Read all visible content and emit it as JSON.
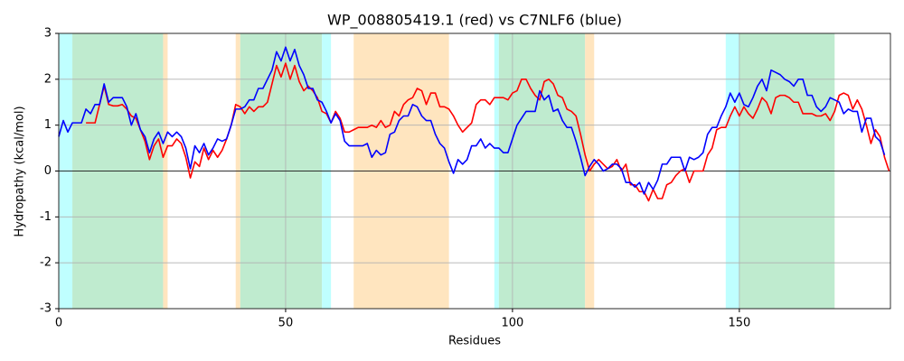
{
  "chart_data": {
    "type": "line",
    "title": "WP_008805419.1 (red) vs C7NLF6 (blue)",
    "x_label": "Residues",
    "y_label": "Hydropathy (kcal/mol)",
    "xlim": [
      0,
      183.3
    ],
    "xticks": [
      0,
      50,
      100,
      150
    ],
    "ylim": [
      -3,
      3
    ],
    "yticks": [
      -3,
      -2,
      -1,
      0,
      1,
      2,
      3
    ],
    "grid": true,
    "hline": 0,
    "regions": [
      {
        "start": 0,
        "end": 3,
        "color": "#bfffff"
      },
      {
        "start": 3,
        "end": 23,
        "color": "#bfebcf"
      },
      {
        "start": 23,
        "end": 24,
        "color": "#ffe5bf"
      },
      {
        "start": 39,
        "end": 40,
        "color": "#ffe5bf"
      },
      {
        "start": 40,
        "end": 58,
        "color": "#bfebcf"
      },
      {
        "start": 58,
        "end": 60,
        "color": "#bfffff"
      },
      {
        "start": 65,
        "end": 86,
        "color": "#ffe5bf"
      },
      {
        "start": 96,
        "end": 97,
        "color": "#bfffff"
      },
      {
        "start": 97,
        "end": 116,
        "color": "#bfebcf"
      },
      {
        "start": 116,
        "end": 118,
        "color": "#ffe5bf"
      },
      {
        "start": 147,
        "end": 150,
        "color": "#bfffff"
      },
      {
        "start": 150,
        "end": 171,
        "color": "#bfebcf"
      }
    ],
    "x": [
      0,
      1,
      2,
      3,
      4,
      5,
      6,
      7,
      8,
      9,
      10,
      11,
      12,
      13,
      14,
      15,
      16,
      17,
      18,
      19,
      20,
      21,
      22,
      23,
      24,
      25,
      26,
      27,
      28,
      29,
      30,
      31,
      32,
      33,
      34,
      35,
      36,
      37,
      38,
      39,
      40,
      41,
      42,
      43,
      44,
      45,
      46,
      47,
      48,
      49,
      50,
      51,
      52,
      53,
      54,
      55,
      56,
      57,
      58,
      59,
      60,
      61,
      62,
      63,
      64,
      65,
      66,
      67,
      68,
      69,
      70,
      71,
      72,
      73,
      74,
      75,
      76,
      77,
      78,
      79,
      80,
      81,
      82,
      83,
      84,
      85,
      86,
      87,
      88,
      89,
      90,
      91,
      92,
      93,
      94,
      95,
      96,
      97,
      98,
      99,
      100,
      101,
      102,
      103,
      104,
      105,
      106,
      107,
      108,
      109,
      110,
      111,
      112,
      113,
      114,
      115,
      116,
      117,
      118,
      119,
      120,
      121,
      122,
      123,
      124,
      125,
      126,
      127,
      128,
      129,
      130,
      131,
      132,
      133,
      134,
      135,
      136,
      137,
      138,
      139,
      140,
      141,
      142,
      143,
      144,
      145,
      146,
      147,
      148,
      149,
      150,
      151,
      152,
      153,
      154,
      155,
      156,
      157,
      158,
      159,
      160,
      161,
      162,
      163,
      164,
      165,
      166,
      167,
      168,
      169,
      170,
      171,
      172,
      173,
      174,
      175,
      176,
      177,
      178,
      179,
      180,
      181,
      182,
      183
    ],
    "series": [
      {
        "color": "red",
        "values": [
          null,
          null,
          null,
          null,
          null,
          null,
          1.05,
          1.05,
          1.05,
          1.45,
          1.85,
          1.45,
          1.42,
          1.42,
          1.45,
          1.35,
          1.2,
          1.15,
          0.9,
          0.65,
          0.25,
          0.55,
          0.7,
          0.3,
          0.55,
          0.55,
          0.7,
          0.6,
          0.3,
          -0.15,
          0.2,
          0.1,
          0.5,
          0.25,
          0.45,
          0.3,
          0.45,
          0.7,
          1.0,
          1.45,
          1.4,
          1.25,
          1.4,
          1.3,
          1.4,
          1.4,
          1.5,
          1.9,
          2.3,
          2.05,
          2.35,
          2.0,
          2.3,
          1.95,
          1.75,
          1.85,
          1.75,
          1.6,
          1.3,
          1.25,
          1.05,
          1.3,
          1.15,
          0.85,
          0.85,
          0.9,
          0.95,
          0.95,
          0.95,
          1.0,
          0.95,
          1.1,
          0.95,
          1.0,
          1.3,
          1.2,
          1.45,
          1.55,
          1.6,
          1.8,
          1.75,
          1.45,
          1.7,
          1.7,
          1.4,
          1.4,
          1.35,
          1.2,
          1.0,
          0.85,
          0.95,
          1.05,
          1.45,
          1.55,
          1.55,
          1.45,
          1.6,
          1.6,
          1.6,
          1.55,
          1.7,
          1.75,
          2.0,
          2.0,
          1.8,
          1.65,
          1.55,
          1.95,
          2.0,
          1.9,
          1.65,
          1.6,
          1.35,
          1.3,
          1.2,
          0.8,
          0.35,
          0.0,
          0.15,
          0.25,
          0.15,
          0.05,
          0.1,
          0.25,
          0.0,
          0.15,
          -0.3,
          -0.3,
          -0.45,
          -0.45,
          -0.65,
          -0.4,
          -0.6,
          -0.6,
          -0.3,
          -0.25,
          -0.1,
          0.0,
          0.05,
          -0.25,
          0.0,
          0.0,
          0.0,
          0.35,
          0.5,
          0.9,
          0.95,
          0.95,
          1.2,
          1.4,
          1.2,
          1.4,
          1.25,
          1.15,
          1.35,
          1.6,
          1.5,
          1.25,
          1.6,
          1.65,
          1.65,
          1.6,
          1.5,
          1.5,
          1.25,
          1.25,
          1.25,
          1.2,
          1.2,
          1.25,
          1.1,
          1.3,
          1.65,
          1.7,
          1.65,
          1.35,
          1.55,
          1.35,
          1.0,
          0.6,
          0.9,
          0.75,
          0.3,
          0.0
        ]
      },
      {
        "color": "blue",
        "values": [
          0.75,
          1.1,
          0.85,
          1.05,
          1.05,
          1.05,
          1.35,
          1.25,
          1.45,
          1.45,
          1.9,
          1.5,
          1.6,
          1.6,
          1.6,
          1.4,
          1.0,
          1.25,
          0.9,
          0.75,
          0.4,
          0.7,
          0.85,
          0.6,
          0.85,
          0.75,
          0.85,
          0.75,
          0.5,
          0.05,
          0.55,
          0.4,
          0.6,
          0.35,
          0.5,
          0.7,
          0.65,
          0.7,
          1.0,
          1.35,
          1.35,
          1.4,
          1.55,
          1.55,
          1.8,
          1.8,
          2.0,
          2.2,
          2.6,
          2.4,
          2.7,
          2.4,
          2.65,
          2.3,
          2.1,
          1.8,
          1.8,
          1.55,
          1.5,
          1.3,
          1.05,
          1.25,
          1.1,
          0.65,
          0.55,
          0.55,
          0.55,
          0.55,
          0.6,
          0.3,
          0.45,
          0.35,
          0.4,
          0.8,
          0.85,
          1.1,
          1.2,
          1.2,
          1.45,
          1.4,
          1.2,
          1.1,
          1.1,
          0.8,
          0.6,
          0.5,
          0.2,
          -0.05,
          0.25,
          0.15,
          0.25,
          0.55,
          0.55,
          0.7,
          0.5,
          0.6,
          0.5,
          0.5,
          0.4,
          0.4,
          0.7,
          1.0,
          1.15,
          1.3,
          1.3,
          1.3,
          1.75,
          1.55,
          1.65,
          1.3,
          1.35,
          1.1,
          0.95,
          0.95,
          0.65,
          0.3,
          -0.1,
          0.1,
          0.25,
          0.15,
          0.0,
          0.05,
          0.15,
          0.15,
          0.05,
          -0.25,
          -0.25,
          -0.35,
          -0.25,
          -0.5,
          -0.25,
          -0.4,
          -0.2,
          0.15,
          0.15,
          0.3,
          0.3,
          0.3,
          0.0,
          0.3,
          0.25,
          0.3,
          0.4,
          0.8,
          0.95,
          0.95,
          1.2,
          1.4,
          1.7,
          1.5,
          1.7,
          1.45,
          1.4,
          1.6,
          1.85,
          2.0,
          1.75,
          2.2,
          2.15,
          2.1,
          2.0,
          1.95,
          1.85,
          2.0,
          2.0,
          1.65,
          1.65,
          1.4,
          1.3,
          1.4,
          1.6,
          1.55,
          1.5,
          1.25,
          1.35,
          1.3,
          1.3,
          0.85,
          1.15,
          1.15,
          0.75,
          0.65,
          0.35,
          null
        ]
      }
    ]
  }
}
